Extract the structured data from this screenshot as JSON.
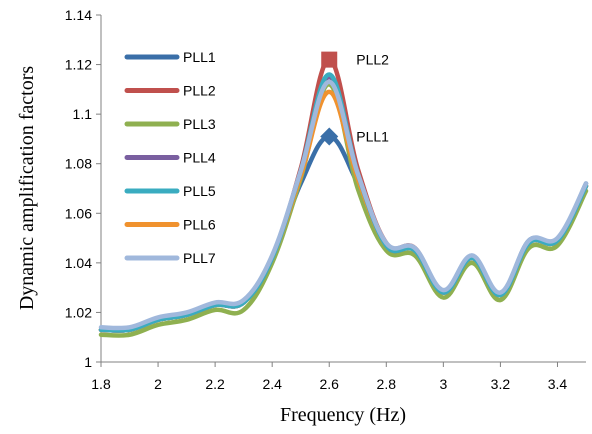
{
  "chart_data": {
    "type": "line",
    "xlabel": "Frequency (Hz)",
    "ylabel": "Dynamic amplification factors",
    "xlim": [
      1.8,
      3.5
    ],
    "ylim": [
      1,
      1.14
    ],
    "x_ticks": [
      "1.8",
      "2",
      "2.2",
      "2.4",
      "2.6",
      "2.8",
      "3",
      "3.2",
      "3.4"
    ],
    "y_ticks": [
      "1",
      "1.02",
      "1.04",
      "1.06",
      "1.08",
      "1.1",
      "1.12",
      "1.14"
    ],
    "grid": false,
    "legend_position": "left",
    "x": [
      1.8,
      1.9,
      2.0,
      2.1,
      2.2,
      2.3,
      2.4,
      2.5,
      2.6,
      2.7,
      2.8,
      2.9,
      3.0,
      3.1,
      3.2,
      3.3,
      3.4,
      3.5
    ],
    "series": [
      {
        "name": "PLL1",
        "color": "#3a6fa8",
        "values": [
          1.013,
          1.013,
          1.017,
          1.019,
          1.023,
          1.024,
          1.042,
          1.072,
          1.091,
          1.072,
          1.047,
          1.045,
          1.028,
          1.042,
          1.027,
          1.049,
          1.049,
          1.072
        ]
      },
      {
        "name": "PLL2",
        "color": "#c0504d",
        "values": [
          1.013,
          1.013,
          1.017,
          1.019,
          1.023,
          1.024,
          1.042,
          1.078,
          1.122,
          1.078,
          1.048,
          1.046,
          1.028,
          1.042,
          1.027,
          1.048,
          1.049,
          1.071
        ]
      },
      {
        "name": "PLL3",
        "color": "#8fb050",
        "values": [
          1.011,
          1.011,
          1.015,
          1.017,
          1.021,
          1.021,
          1.04,
          1.074,
          1.112,
          1.07,
          1.045,
          1.043,
          1.026,
          1.04,
          1.025,
          1.046,
          1.047,
          1.069
        ]
      },
      {
        "name": "PLL4",
        "color": "#7a5fa0",
        "values": [
          1.013,
          1.013,
          1.017,
          1.019,
          1.023,
          1.024,
          1.042,
          1.077,
          1.115,
          1.076,
          1.047,
          1.045,
          1.028,
          1.042,
          1.027,
          1.048,
          1.049,
          1.071
        ]
      },
      {
        "name": "PLL5",
        "color": "#3aacc0",
        "values": [
          1.013,
          1.013,
          1.017,
          1.019,
          1.023,
          1.024,
          1.042,
          1.077,
          1.116,
          1.076,
          1.047,
          1.045,
          1.028,
          1.042,
          1.027,
          1.048,
          1.049,
          1.071
        ]
      },
      {
        "name": "PLL6",
        "color": "#f0922e",
        "values": [
          1.013,
          1.013,
          1.017,
          1.019,
          1.023,
          1.024,
          1.042,
          1.075,
          1.109,
          1.074,
          1.047,
          1.045,
          1.028,
          1.042,
          1.027,
          1.048,
          1.049,
          1.071
        ]
      },
      {
        "name": "PLL7",
        "color": "#a0b8dc",
        "values": [
          1.014,
          1.014,
          1.018,
          1.02,
          1.024,
          1.025,
          1.043,
          1.077,
          1.113,
          1.076,
          1.048,
          1.046,
          1.029,
          1.043,
          1.028,
          1.049,
          1.05,
          1.072
        ]
      }
    ],
    "annotations": [
      {
        "text": "PLL2",
        "x": 2.6,
        "y": 1.122,
        "marker": "square",
        "color": "#c0504d"
      },
      {
        "text": "PLL1",
        "x": 2.6,
        "y": 1.091,
        "marker": "diamond",
        "color": "#3a6fa8"
      }
    ]
  }
}
